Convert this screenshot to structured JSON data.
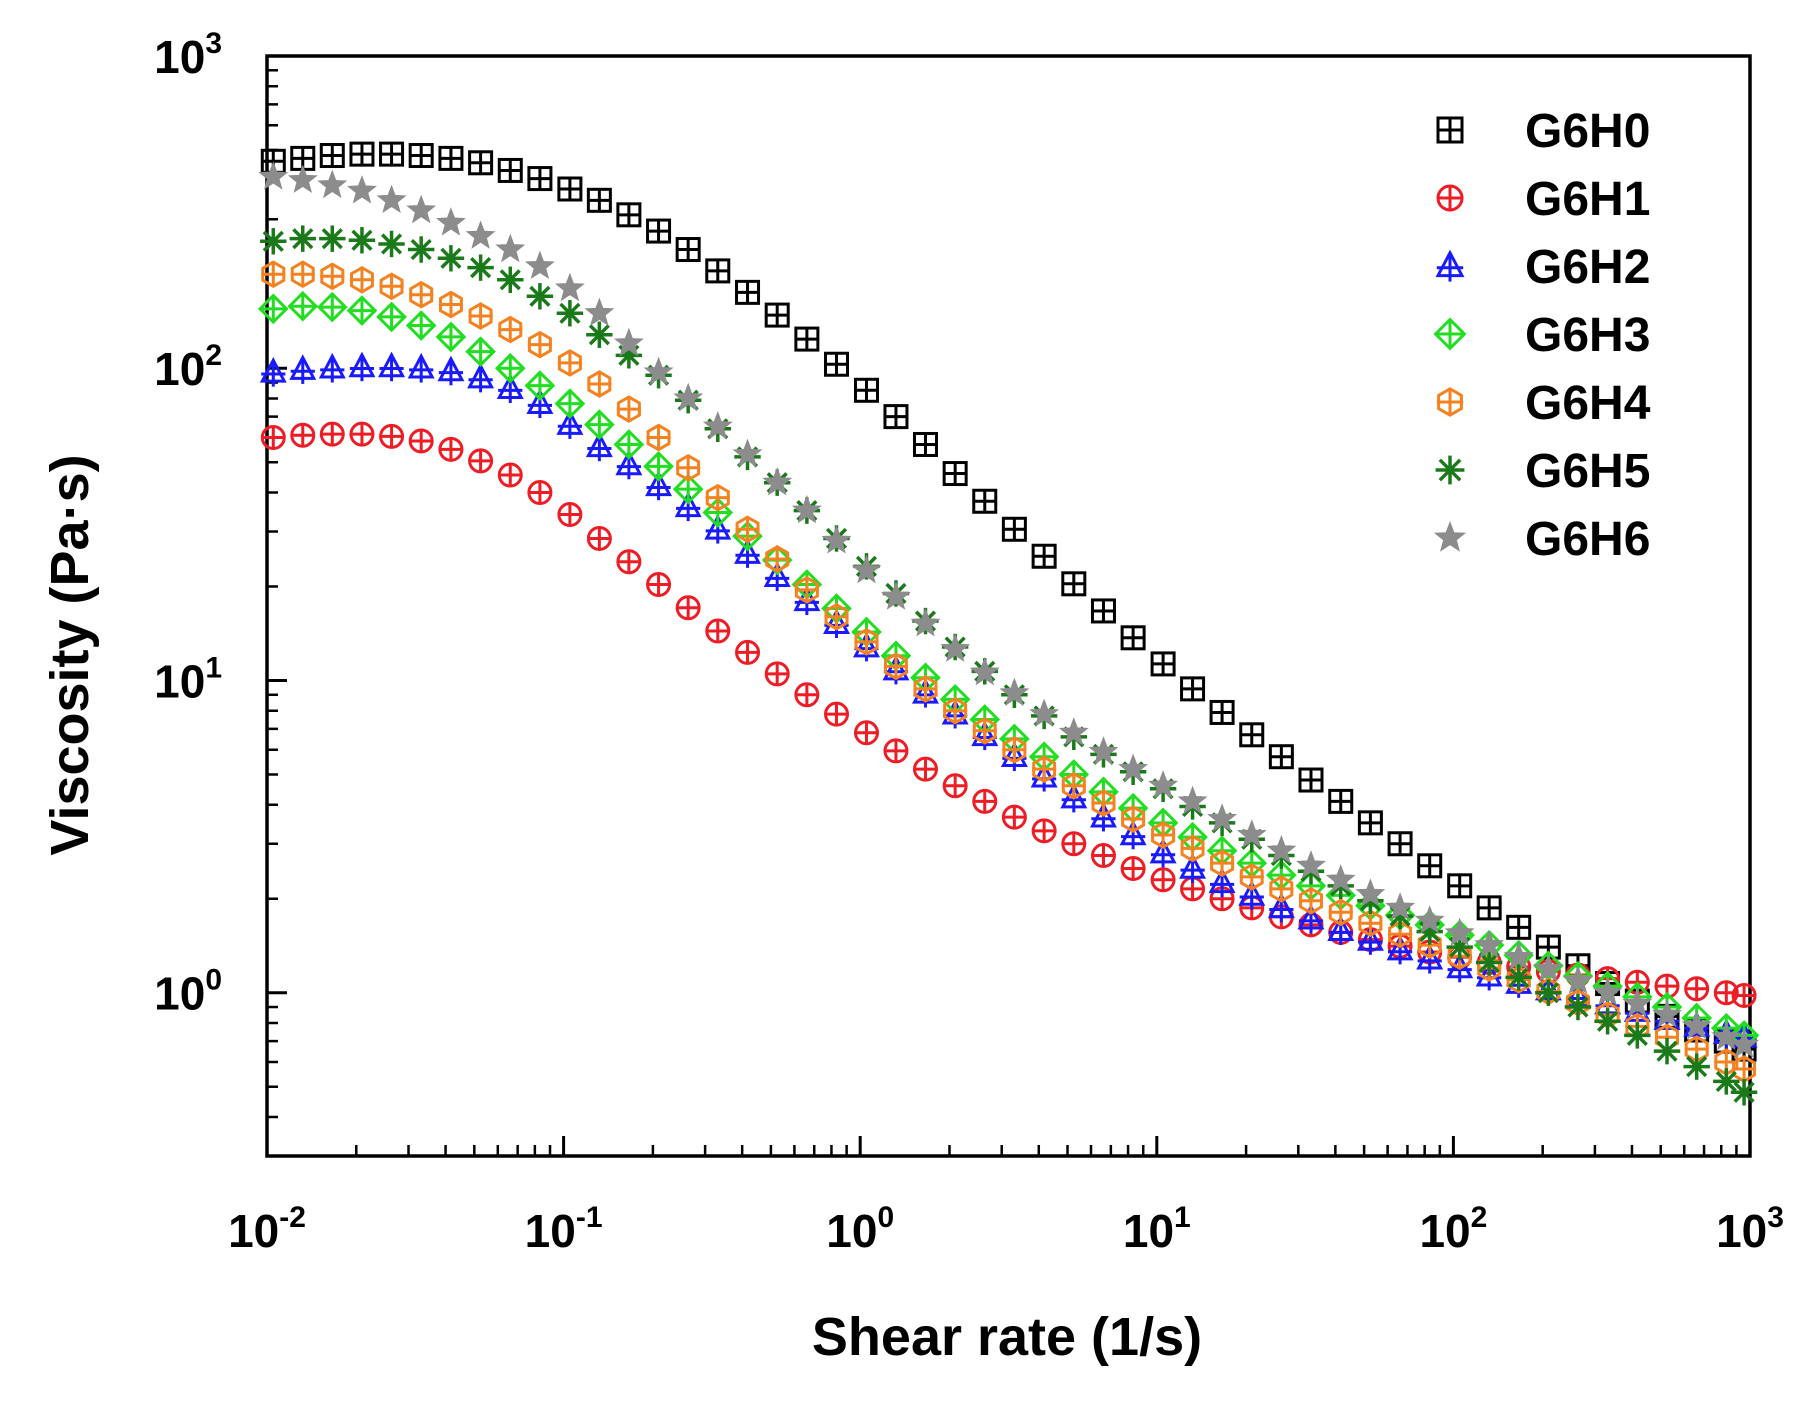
{
  "chart_data": {
    "type": "scatter",
    "xlabel": "Shear rate (1/s)",
    "ylabel": "Viscosity (Pa·s)",
    "xscale": "log",
    "yscale": "log",
    "xlim": [
      0.01,
      1000
    ],
    "ylim": [
      0.3,
      1000
    ],
    "xticks": [
      {
        "value": 0.01,
        "base": "10",
        "exp": "-2"
      },
      {
        "value": 0.1,
        "base": "10",
        "exp": "-1"
      },
      {
        "value": 1,
        "base": "10",
        "exp": "0"
      },
      {
        "value": 10,
        "base": "10",
        "exp": "1"
      },
      {
        "value": 100,
        "base": "10",
        "exp": "2"
      },
      {
        "value": 1000,
        "base": "10",
        "exp": "3"
      }
    ],
    "yticks": [
      {
        "value": 1,
        "base": "10",
        "exp": "0"
      },
      {
        "value": 10,
        "base": "10",
        "exp": "1"
      },
      {
        "value": 100,
        "base": "10",
        "exp": "2"
      },
      {
        "value": 1000,
        "base": "10",
        "exp": "3"
      }
    ],
    "legend_position": "top-right",
    "grid": false,
    "x": [
      0.0105,
      0.0132,
      0.0166,
      0.0209,
      0.0263,
      0.0331,
      0.0417,
      0.0525,
      0.0661,
      0.0832,
      0.105,
      0.132,
      0.166,
      0.209,
      0.263,
      0.331,
      0.417,
      0.525,
      0.661,
      0.832,
      1.05,
      1.32,
      1.66,
      2.09,
      2.63,
      3.31,
      4.17,
      5.25,
      6.61,
      8.32,
      10.5,
      13.2,
      16.6,
      20.9,
      26.3,
      33.1,
      41.7,
      52.5,
      66.1,
      83.2,
      105,
      132,
      166,
      209,
      263,
      331,
      417,
      525,
      661,
      832,
      955
    ],
    "series": [
      {
        "name": "G6H0",
        "color": "#000000",
        "marker": "square-plus",
        "values": [
          460,
          470,
          480,
          485,
          485,
          480,
          470,
          455,
          430,
          405,
          375,
          345,
          310,
          275,
          240,
          205,
          175,
          148,
          124,
          103,
          85,
          70,
          57,
          46,
          37.5,
          30.5,
          25,
          20.4,
          16.7,
          13.7,
          11.3,
          9.4,
          7.9,
          6.7,
          5.7,
          4.8,
          4.1,
          3.5,
          3.0,
          2.55,
          2.2,
          1.87,
          1.62,
          1.4,
          1.22,
          1.07,
          0.94,
          0.84,
          0.76,
          0.7,
          0.66
        ]
      },
      {
        "name": "G6H1",
        "color": "#ee1c25",
        "marker": "circle-plus",
        "values": [
          60,
          61,
          61.5,
          61.5,
          60.5,
          58.5,
          55,
          50.5,
          45.5,
          40,
          34,
          28.5,
          24,
          20.3,
          17.1,
          14.4,
          12.3,
          10.5,
          9.0,
          7.8,
          6.8,
          5.95,
          5.2,
          4.6,
          4.1,
          3.65,
          3.3,
          3.0,
          2.75,
          2.5,
          2.3,
          2.15,
          2.0,
          1.87,
          1.75,
          1.65,
          1.56,
          1.48,
          1.41,
          1.35,
          1.3,
          1.25,
          1.21,
          1.17,
          1.14,
          1.11,
          1.08,
          1.05,
          1.03,
          1.0,
          0.98
        ]
      },
      {
        "name": "G6H2",
        "color": "#1a1aff",
        "marker": "triangle-plus",
        "values": [
          97,
          99,
          100,
          101,
          101,
          100,
          98,
          93,
          86,
          77,
          66,
          56,
          49,
          42,
          36,
          30.5,
          25.5,
          21.5,
          18,
          15.2,
          12.8,
          10.8,
          9.1,
          7.8,
          6.65,
          5.7,
          4.9,
          4.2,
          3.65,
          3.2,
          2.8,
          2.5,
          2.25,
          2.05,
          1.87,
          1.72,
          1.58,
          1.47,
          1.37,
          1.28,
          1.2,
          1.13,
          1.07,
          1.02,
          0.97,
          0.92,
          0.87,
          0.82,
          0.78,
          0.74,
          0.72
        ]
      },
      {
        "name": "G6H3",
        "color": "#22dd22",
        "marker": "diamond-plus",
        "values": [
          155,
          158,
          157,
          153,
          146,
          137,
          126,
          113,
          100,
          88,
          77,
          66,
          57,
          48.5,
          41,
          34.5,
          29,
          24.3,
          20.3,
          17,
          14.3,
          12,
          10.2,
          8.7,
          7.5,
          6.5,
          5.7,
          5.0,
          4.4,
          3.9,
          3.5,
          3.15,
          2.85,
          2.6,
          2.38,
          2.2,
          2.05,
          1.9,
          1.77,
          1.65,
          1.53,
          1.42,
          1.32,
          1.22,
          1.13,
          1.05,
          0.97,
          0.9,
          0.83,
          0.77,
          0.73
        ]
      },
      {
        "name": "G6H4",
        "color": "#f58220",
        "marker": "hexagon-plus",
        "values": [
          200,
          200,
          197,
          192,
          183,
          172,
          160,
          147,
          133,
          119,
          104,
          89,
          74,
          60,
          48,
          38.5,
          30.5,
          24.5,
          19.5,
          16,
          13.3,
          11.1,
          9.4,
          8.0,
          6.9,
          6.0,
          5.2,
          4.6,
          4.05,
          3.6,
          3.2,
          2.9,
          2.6,
          2.35,
          2.15,
          1.97,
          1.81,
          1.67,
          1.54,
          1.42,
          1.31,
          1.2,
          1.1,
          1.01,
          0.93,
          0.85,
          0.78,
          0.72,
          0.66,
          0.6,
          0.57
        ]
      },
      {
        "name": "G6H5",
        "color": "#1a7a1a",
        "marker": "asterisk",
        "values": [
          255,
          260,
          260,
          257,
          250,
          240,
          225,
          210,
          192,
          170,
          150,
          128,
          110,
          95,
          79,
          64,
          52,
          43,
          35,
          28.5,
          23.2,
          19,
          15.5,
          12.8,
          10.7,
          9.0,
          7.7,
          6.6,
          5.8,
          5.1,
          4.5,
          3.95,
          3.5,
          3.1,
          2.75,
          2.45,
          2.2,
          1.97,
          1.76,
          1.57,
          1.4,
          1.25,
          1.12,
          1.0,
          0.9,
          0.81,
          0.73,
          0.65,
          0.58,
          0.52,
          0.48
        ]
      },
      {
        "name": "G6H6",
        "color": "#8c8c8c",
        "marker": "star",
        "values": [
          410,
          400,
          385,
          370,
          345,
          320,
          292,
          265,
          240,
          212,
          180,
          150,
          120,
          97,
          80,
          65,
          53,
          43,
          35,
          28,
          22.5,
          18.5,
          15.2,
          12.6,
          10.6,
          9.1,
          7.8,
          6.8,
          5.9,
          5.2,
          4.6,
          4.1,
          3.6,
          3.2,
          2.85,
          2.55,
          2.3,
          2.07,
          1.87,
          1.7,
          1.55,
          1.42,
          1.3,
          1.19,
          1.09,
          1.0,
          0.92,
          0.85,
          0.78,
          0.72,
          0.68
        ]
      }
    ]
  }
}
